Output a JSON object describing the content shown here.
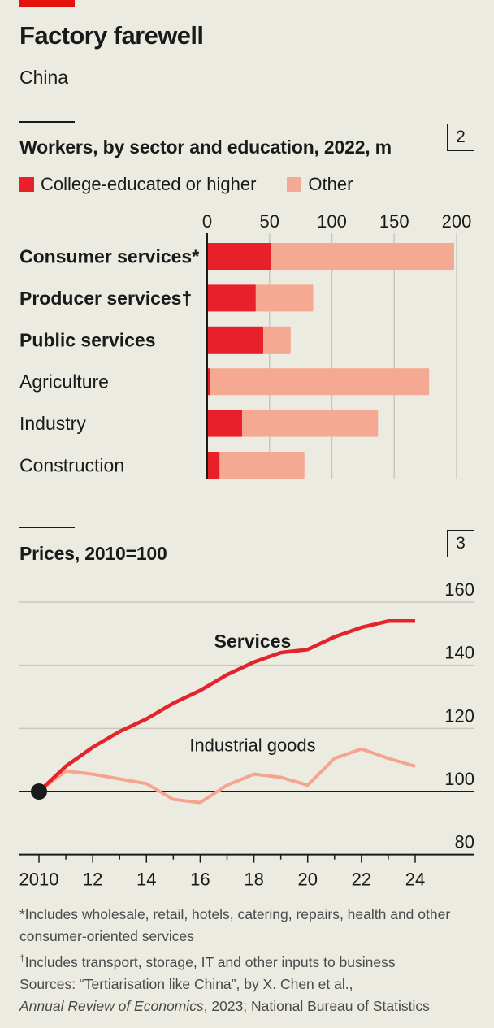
{
  "header": {
    "title": "Factory farewell",
    "subtitle": "China"
  },
  "colors": {
    "accent": "#e3120b",
    "college": "#e8202a",
    "other": "#f6a992",
    "services_line": "#e3242b",
    "industrial_line": "#f5a58d",
    "background": "#ecebe2"
  },
  "chart_data": [
    {
      "type": "bar",
      "orientation": "horizontal",
      "stacked": true,
      "title": "Workers, by sector and education, 2022, m",
      "badge": "2",
      "categories": [
        "Consumer services*",
        "Producer services†",
        "Public services",
        "Agriculture",
        "Industry",
        "Construction"
      ],
      "category_bold": [
        true,
        true,
        true,
        false,
        false,
        false
      ],
      "series": [
        {
          "name": "College-educated or higher",
          "values": [
            51,
            39,
            45,
            2,
            28,
            10
          ]
        },
        {
          "name": "Other",
          "values": [
            147,
            46,
            22,
            176,
            109,
            68
          ]
        }
      ],
      "xlim": [
        0,
        200
      ],
      "xticks": [
        0,
        50,
        100,
        150,
        200
      ],
      "xtick_labels": [
        "0",
        "50",
        "100",
        "150",
        "200"
      ],
      "legend_position": "top-left",
      "grid": true
    },
    {
      "type": "line",
      "title": "Prices, 2010=100",
      "badge": "3",
      "x": [
        2010,
        2011,
        2012,
        2013,
        2014,
        2015,
        2016,
        2017,
        2018,
        2019,
        2020,
        2021,
        2022,
        2023,
        2024
      ],
      "series": [
        {
          "name": "Services",
          "values": [
            100,
            108,
            114,
            119,
            123,
            128,
            132,
            137,
            141,
            144,
            145,
            149,
            152,
            154,
            154
          ]
        },
        {
          "name": "Industrial goods",
          "values": [
            100,
            106.5,
            105.5,
            104,
            102.5,
            97.5,
            96.5,
            102,
            105.5,
            104.5,
            102,
            110.5,
            113.5,
            110.5,
            108
          ]
        }
      ],
      "ylim": [
        80,
        160
      ],
      "yticks": [
        80,
        100,
        120,
        140,
        160
      ],
      "ytick_labels": [
        "80",
        "100",
        "120",
        "140",
        "160"
      ],
      "xticks": [
        2010,
        2011,
        2012,
        2013,
        2014,
        2015,
        2016,
        2017,
        2018,
        2019,
        2020,
        2021,
        2022,
        2023,
        2024
      ],
      "xtick_labels": [
        "2010",
        "12",
        "14",
        "16",
        "18",
        "20",
        "22",
        "24"
      ],
      "baseline": 100,
      "grid": true
    }
  ],
  "footnotes": {
    "note1": "*Includes wholesale, retail, hotels, catering, repairs, health and other consumer-oriented services",
    "note2_mark": "†",
    "note2": "Includes transport, storage, IT and other inputs to business",
    "sources_prefix": "Sources: “Tertiarisation like China”, by X. Chen et al.,",
    "sources_journal": "Annual Review of Economics",
    "sources_suffix": ", 2023; National Bureau of Statistics"
  }
}
